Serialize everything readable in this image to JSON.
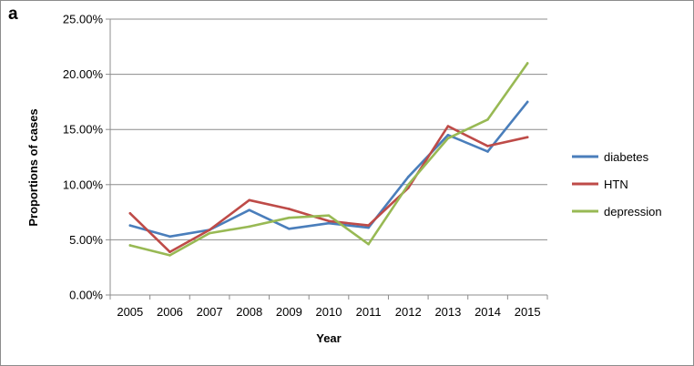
{
  "panel_label": "a",
  "chart_data": {
    "type": "line",
    "title": "",
    "xlabel": "Year",
    "ylabel": "Proportions of cases",
    "categories": [
      "2005",
      "2006",
      "2007",
      "2008",
      "2009",
      "2010",
      "2011",
      "2012",
      "2013",
      "2014",
      "2015"
    ],
    "ylim": [
      0,
      0.25
    ],
    "y_ticks": [
      0,
      0.05,
      0.1,
      0.15,
      0.2,
      0.25
    ],
    "y_tick_labels": [
      "0.00%",
      "5.00%",
      "10.00%",
      "15.00%",
      "20.00%",
      "25.00%"
    ],
    "grid": true,
    "legend_position": "right",
    "series": [
      {
        "name": "diabetes",
        "color": "#4a7ebb",
        "values": [
          0.063,
          0.053,
          0.059,
          0.077,
          0.06,
          0.065,
          0.061,
          0.107,
          0.145,
          0.13,
          0.175
        ]
      },
      {
        "name": "HTN",
        "color": "#be4b48",
        "values": [
          0.074,
          0.039,
          0.059,
          0.086,
          0.078,
          0.067,
          0.063,
          0.097,
          0.153,
          0.135,
          0.143
        ]
      },
      {
        "name": "depression",
        "color": "#98b954",
        "values": [
          0.045,
          0.036,
          0.056,
          0.062,
          0.07,
          0.072,
          0.046,
          0.1,
          0.142,
          0.159,
          0.21
        ]
      }
    ]
  }
}
